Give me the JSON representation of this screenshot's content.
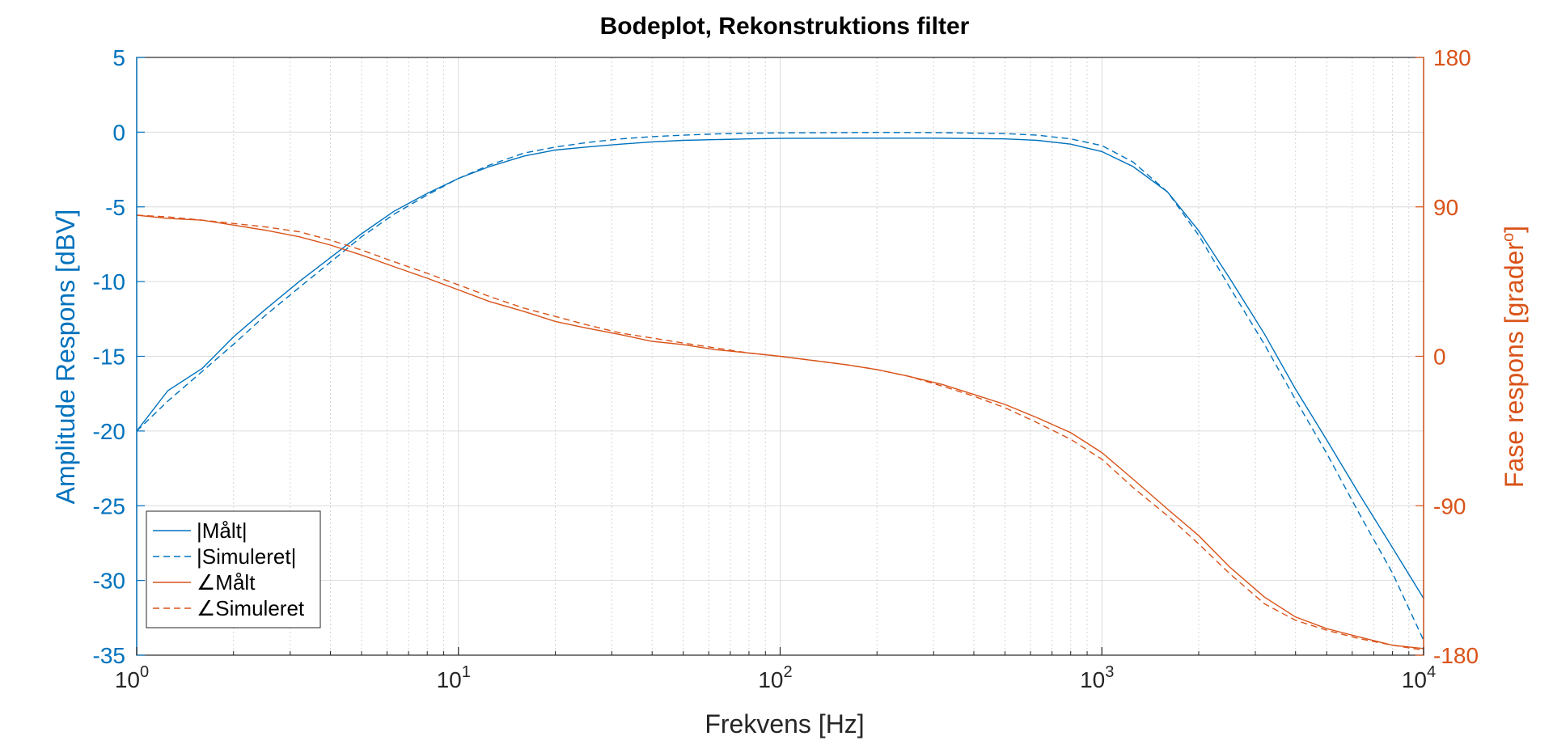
{
  "chart_data": {
    "type": "line",
    "title": "Bodeplot, Rekonstruktions filter",
    "xlabel": "Frekvens [Hz]",
    "ylabel_left": "Amplitude Respons [dBV]",
    "ylabel_right": "Fase respons [grader",
    "ylabel_right_sup": "o",
    "ylabel_right_suffix": "]",
    "x_scale": "log",
    "xlim": [
      1,
      10000
    ],
    "ylim_left": [
      -35,
      5
    ],
    "ylim_right": [
      -180,
      180
    ],
    "x_ticks": [
      {
        "base": "10",
        "exp": "0"
      },
      {
        "base": "10",
        "exp": "1"
      },
      {
        "base": "10",
        "exp": "2"
      },
      {
        "base": "10",
        "exp": "3"
      },
      {
        "base": "10",
        "exp": "4"
      }
    ],
    "y_ticks_left": [
      "5",
      "0",
      "-5",
      "-10",
      "-15",
      "-20",
      "-25",
      "-30",
      "-35"
    ],
    "y_ticks_right": [
      "180",
      "90",
      "0",
      "-90",
      "-180"
    ],
    "grid": true,
    "legend_position": "bottom-left",
    "colors": {
      "amplitude": "#0072bd",
      "phase": "#d95319"
    },
    "series": [
      {
        "name": "|Målt|",
        "axis": "left",
        "style": "solid",
        "x": [
          1,
          1.25,
          1.6,
          2,
          2.5,
          3.2,
          4,
          5,
          6.3,
          8,
          10,
          12.5,
          16,
          20,
          25,
          32,
          40,
          50,
          63,
          80,
          100,
          200,
          300,
          500,
          630,
          800,
          1000,
          1250,
          1600,
          2000,
          2500,
          3200,
          4000,
          5000,
          6300,
          8000,
          10000
        ],
        "y": [
          -20,
          -17.3,
          -15.8,
          -13.7,
          -11.9,
          -10,
          -8.4,
          -6.8,
          -5.3,
          -4.1,
          -3.1,
          -2.3,
          -1.6,
          -1.2,
          -1.0,
          -0.8,
          -0.65,
          -0.55,
          -0.5,
          -0.45,
          -0.42,
          -0.4,
          -0.4,
          -0.45,
          -0.55,
          -0.8,
          -1.3,
          -2.3,
          -4.0,
          -6.6,
          -9.8,
          -13.5,
          -17.2,
          -20.6,
          -24.2,
          -27.8,
          -31.2
        ]
      },
      {
        "name": "|Simuleret|",
        "axis": "left",
        "style": "dashed",
        "x": [
          1,
          1.25,
          1.6,
          2,
          2.5,
          3.2,
          4,
          5,
          6.3,
          8,
          10,
          12.5,
          16,
          20,
          25,
          32,
          40,
          50,
          63,
          80,
          100,
          200,
          300,
          500,
          630,
          800,
          1000,
          1250,
          1600,
          2000,
          2500,
          3200,
          4000,
          5000,
          6300,
          8000,
          10000
        ],
        "y": [
          -20,
          -18,
          -16,
          -14.2,
          -12.3,
          -10.4,
          -8.7,
          -7.0,
          -5.5,
          -4.2,
          -3.1,
          -2.2,
          -1.4,
          -1.0,
          -0.7,
          -0.45,
          -0.3,
          -0.2,
          -0.12,
          -0.07,
          -0.05,
          -0.02,
          -0.03,
          -0.1,
          -0.2,
          -0.45,
          -0.9,
          -2.0,
          -4.0,
          -6.9,
          -10.4,
          -14.2,
          -17.9,
          -21.5,
          -25.5,
          -29.5,
          -34
        ]
      },
      {
        "name": "∠Målt",
        "axis": "right",
        "style": "solid",
        "x": [
          1,
          1.25,
          1.6,
          2,
          2.5,
          3.2,
          4,
          5,
          6.3,
          8,
          10,
          12.5,
          16,
          20,
          25,
          32,
          40,
          50,
          63,
          80,
          100,
          160,
          200,
          250,
          320,
          400,
          500,
          630,
          800,
          1000,
          1250,
          1600,
          2000,
          2500,
          3200,
          4000,
          5000,
          6300,
          8000,
          10000
        ],
        "y": [
          85,
          83,
          82,
          79,
          76,
          72,
          67,
          61,
          54,
          47,
          40,
          33,
          27,
          21,
          17,
          13,
          9,
          7,
          4,
          2,
          0,
          -5,
          -8,
          -12,
          -17,
          -23,
          -29,
          -37,
          -46,
          -58,
          -74,
          -92,
          -108,
          -127,
          -145,
          -157,
          -164,
          -169,
          -174,
          -176
        ]
      },
      {
        "name": "∠Simuleret",
        "axis": "right",
        "style": "dashed",
        "x": [
          1,
          1.25,
          1.6,
          2,
          2.5,
          3.2,
          4,
          5,
          6.3,
          8,
          10,
          12.5,
          16,
          20,
          25,
          32,
          40,
          50,
          63,
          80,
          100,
          160,
          200,
          250,
          320,
          400,
          500,
          630,
          800,
          1000,
          1250,
          1600,
          2000,
          2500,
          3200,
          4000,
          5000,
          6300,
          8000,
          10000
        ],
        "y": [
          85,
          84,
          82,
          80,
          78,
          75,
          70,
          64,
          57,
          50,
          43,
          36,
          29,
          24,
          19,
          14,
          11,
          8,
          5,
          2,
          0,
          -5,
          -8,
          -12,
          -18,
          -24,
          -31,
          -40,
          -50,
          -62,
          -79,
          -96,
          -113,
          -131,
          -149,
          -159,
          -165,
          -170,
          -174,
          -177
        ]
      }
    ]
  }
}
